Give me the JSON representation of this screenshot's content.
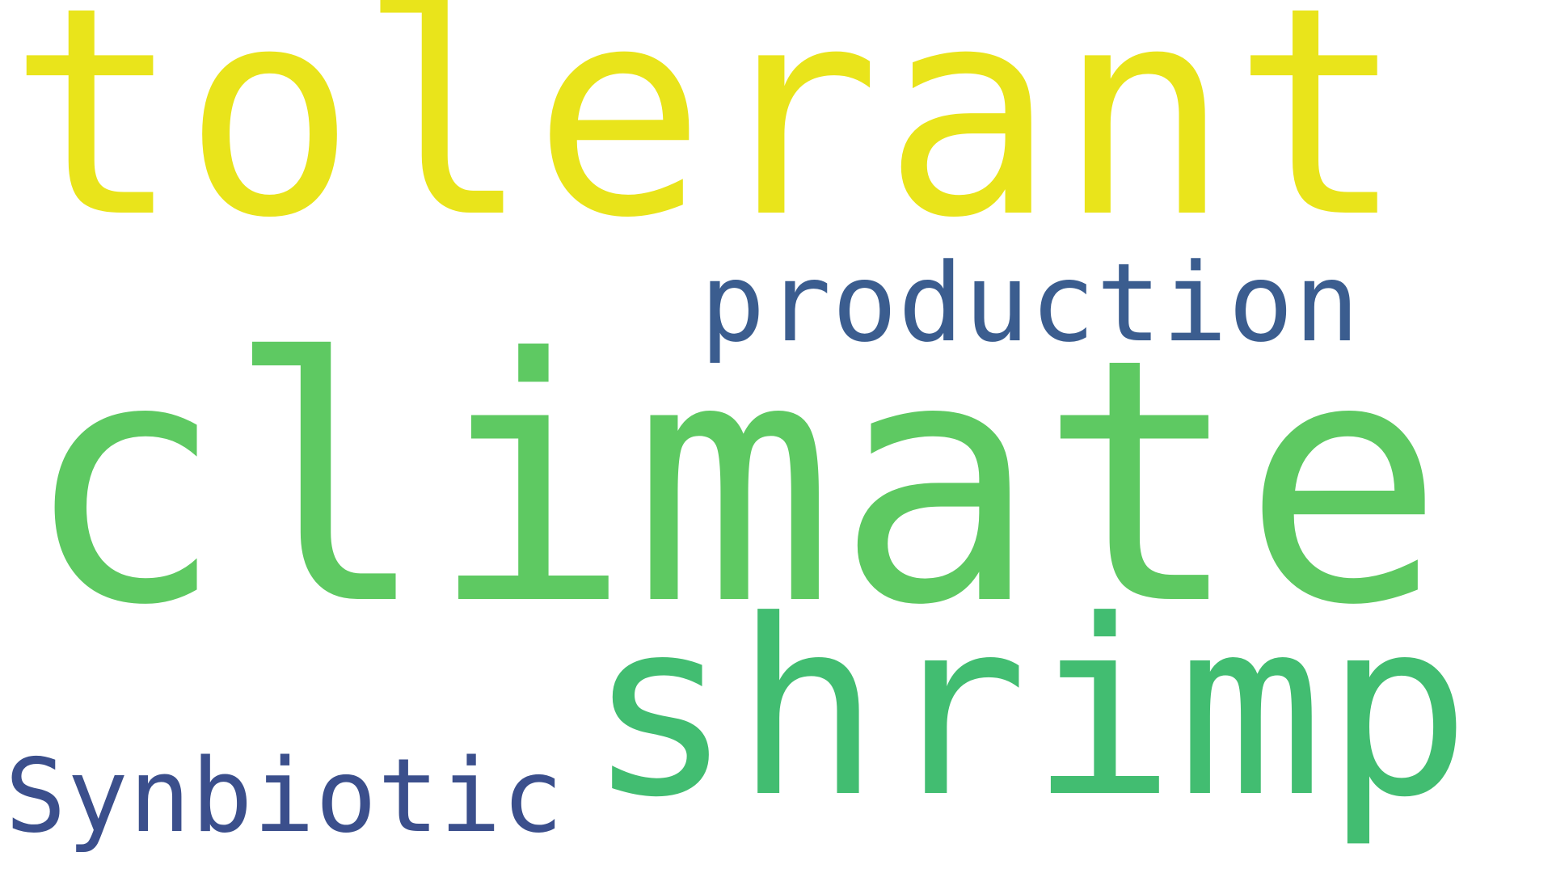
{
  "wordcloud": {
    "words": [
      {
        "text": "tolerant",
        "color": "#e9e41b"
      },
      {
        "text": "climate",
        "color": "#5ec962"
      },
      {
        "text": "shrimp",
        "color": "#42bd71"
      },
      {
        "text": "production",
        "color": "#3b5d8f"
      },
      {
        "text": "Synbiotic",
        "color": "#3b4f8c"
      }
    ]
  }
}
